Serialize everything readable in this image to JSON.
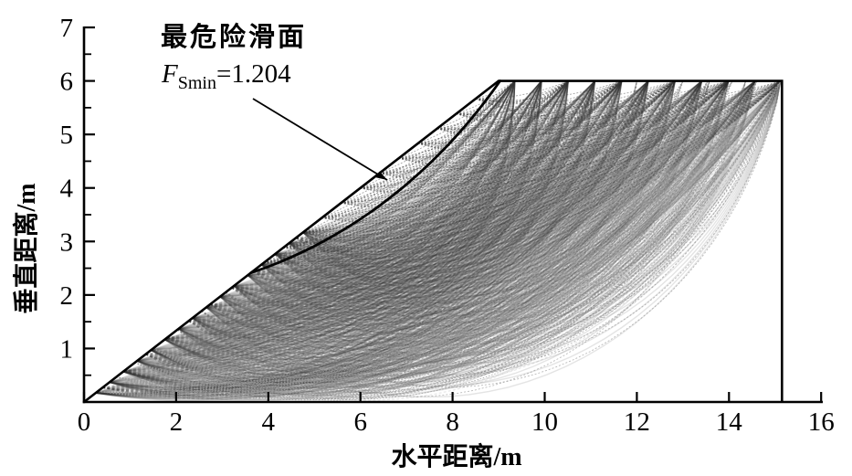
{
  "figure": {
    "background": "#ffffff",
    "text_color": "#000000"
  },
  "chart_data": {
    "type": "line",
    "title": "",
    "xlabel": "水平距离/m",
    "ylabel": "垂直距离/m",
    "xlim": [
      0,
      16
    ],
    "ylim": [
      0,
      7
    ],
    "x_ticks": [
      0,
      2,
      4,
      6,
      8,
      10,
      12,
      14,
      16
    ],
    "y_ticks": [
      1,
      2,
      3,
      4,
      5,
      6,
      7
    ],
    "y_minor_ticks": [
      0.5,
      1.5,
      2.5,
      3.5,
      4.5,
      5.5,
      6.5
    ],
    "grid": false,
    "slope_profile": [
      [
        0,
        0
      ],
      [
        9,
        6
      ],
      [
        15.15,
        6
      ],
      [
        15.15,
        0
      ]
    ],
    "critical_surface": {
      "label": "最危险滑面",
      "fs_min": 1.204,
      "fs_min_f": "F",
      "fs_min_sub": "Smin",
      "fs_min_value": "=1.204",
      "entry": [
        3.62,
        2.413
      ],
      "exit": [
        9.03,
        6
      ],
      "sag": 0.5
    },
    "annotation": {
      "arrow_from": [
        3.667,
        5.668
      ],
      "arrow_to": [
        6.581,
        4.149
      ]
    },
    "trial_surface_families": [
      {
        "name": "deep-solid",
        "entries": [
          0.25,
          4.75,
          16
        ],
        "exits": [
          9.35,
          15.15,
          11
        ],
        "sag_factors": [
          0.07,
          0.13,
          0.2,
          0.27
        ],
        "stroke": "#2f2f2f",
        "opacity": 0.13,
        "width": 1.4,
        "dash": ""
      },
      {
        "name": "deep-speckle",
        "entries": [
          0.4,
          4.6,
          10
        ],
        "exits": [
          9.35,
          15.15,
          11
        ],
        "sag_factors": [
          0.1,
          0.165,
          0.235
        ],
        "stroke": "#3c3c3c",
        "opacity": 0.12,
        "width": 1.2,
        "dash": "3 2.2"
      },
      {
        "name": "mid-light",
        "entries": [
          1.5,
          3.6,
          5
        ],
        "exits": [
          12.0,
          15.15,
          5
        ],
        "sag_factors": [
          0.24,
          0.28
        ],
        "stroke": "#787878",
        "opacity": 0.5,
        "width": 0.9,
        "dash": "2 2"
      },
      {
        "name": "deep-light-dotted",
        "entries": [
          0.3,
          1.5,
          4
        ],
        "exits": [
          13.0,
          15.15,
          5
        ],
        "sag_factors": [
          0.3,
          0.34
        ],
        "stroke": "#9a9a9a",
        "opacity": 0.85,
        "width": 0.8,
        "dash": "1.5 1.8"
      },
      {
        "name": "shallow-hatch",
        "entries": [
          3.9,
          8.5,
          12
        ],
        "exits": [
          9.35,
          15.15,
          6
        ],
        "sag_factors": [
          0.045,
          0.095
        ],
        "stroke": "#3a3a3a",
        "opacity": 0.45,
        "width": 0.9,
        "dash": "2 1.7"
      }
    ],
    "colors": {
      "mass": "#3f3f3f",
      "outline": "#000000",
      "light_arc": "#9a9a9a"
    }
  }
}
